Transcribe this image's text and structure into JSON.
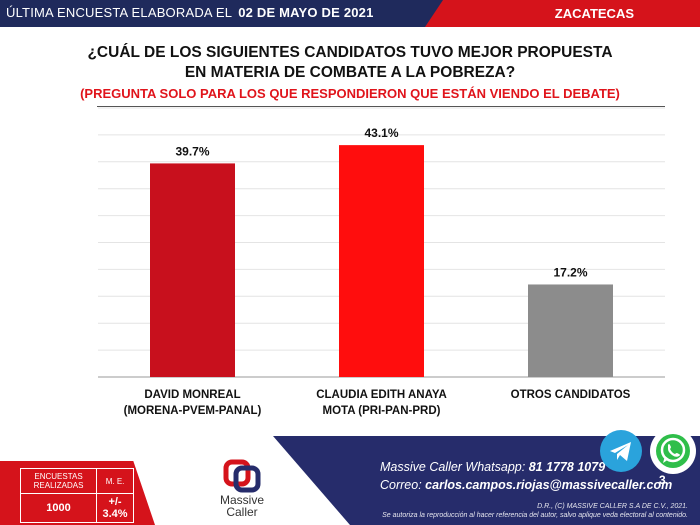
{
  "header": {
    "survey_label": "ÚLTIMA ENCUESTA ELABORADA EL",
    "survey_date": "02 DE MAYO DE 2021",
    "state": "ZACATECAS"
  },
  "chart_data": {
    "type": "bar",
    "title": "¿CUÁL DE LOS SIGUIENTES CANDIDATOS TUVO MEJOR PROPUESTA EN MATERIA DE COMBATE A LA POBREZA?",
    "title_lines": [
      "¿CUÁL DE LOS SIGUIENTES CANDIDATOS TUVO MEJOR PROPUESTA",
      "EN MATERIA DE COMBATE A LA POBREZA?"
    ],
    "subtitle": "(PREGUNTA SOLO PARA LOS QUE RESPONDIERON QUE ESTÁN VIENDO EL DEBATE)",
    "categories": [
      [
        "DAVID MONREAL",
        "(MORENA-PVEM-PANAL)"
      ],
      [
        "CLAUDIA EDITH ANAYA",
        "MOTA (PRI-PAN-PRD)"
      ],
      [
        "OTROS CANDIDATOS"
      ]
    ],
    "values": [
      39.7,
      43.1,
      17.2
    ],
    "data_labels": [
      "39.7%",
      "43.1%",
      "17.2%"
    ],
    "colors": [
      "#c8101d",
      "#ff0d0d",
      "#8c8c8c"
    ],
    "ylim": [
      0,
      50
    ],
    "grid": true,
    "legend": "none"
  },
  "footer": {
    "stats": {
      "surveys_label": "ENCUESTAS REALIZADAS",
      "margin_label": "M. E.",
      "surveys_value": "1000",
      "margin_value": "+/- 3.4%"
    },
    "logo_line1": "Massive",
    "logo_line2": "Caller",
    "whatsapp_label": "Massive Caller Whatsapp:",
    "whatsapp_number": "81 1778 1079",
    "email_label": "Correo:",
    "email": "carlos.campos.riojas@massivecaller.com",
    "rights_line1": "D.R., (C) MASSIVE CALLER S.A DE C.V., 2021.",
    "rights_line2": "Se autoriza la reproducción al hacer referencia del autor, salvo aplique veda electoral al contenido.",
    "page_number": "3",
    "accent_red": "#d5131b",
    "accent_navy": "#262c6b"
  }
}
